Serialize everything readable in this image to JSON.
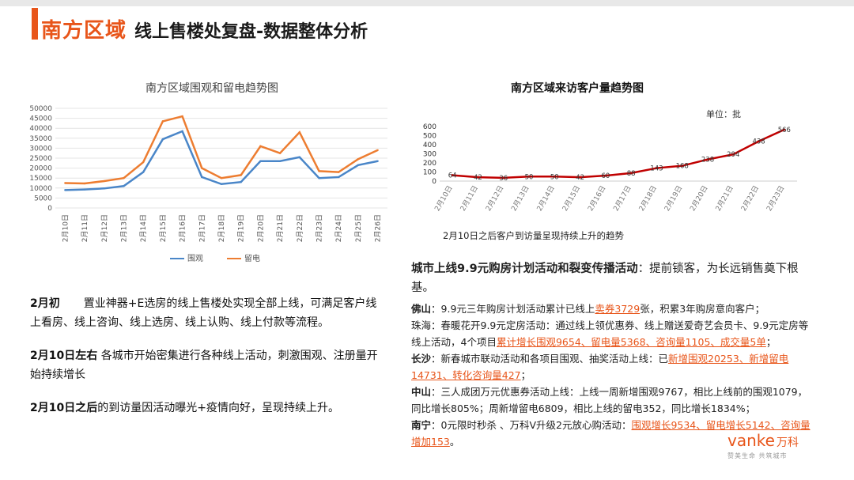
{
  "header": {
    "title_main": "南方区域",
    "title_sub": "线上售楼处复盘-数据整体分析"
  },
  "left_chart": {
    "title": "南方区域围观和留电趋势图",
    "legend": [
      "围观",
      "留电"
    ]
  },
  "right_chart": {
    "title": "南方区域来访客户量趋势图",
    "unit": "单位：批",
    "note": "2月10日之后客户到访量呈现持续上升的趋势"
  },
  "chart_data": [
    {
      "type": "line",
      "title": "南方区域围观和留电趋势图",
      "categories": [
        "2月10日",
        "2月11日",
        "2月12日",
        "2月13日",
        "2月14日",
        "2月15日",
        "2月16日",
        "2月17日",
        "2月18日",
        "2月19日",
        "2月20日",
        "2月21日",
        "2月22日",
        "2月23日",
        "2月24日",
        "2月25日",
        "2月26日"
      ],
      "series": [
        {
          "name": "围观",
          "color": "#4a86c8",
          "values": [
            9000,
            9300,
            9800,
            11000,
            18000,
            34500,
            38500,
            15500,
            12000,
            13000,
            23500,
            23500,
            25500,
            15000,
            15500,
            21500,
            23500
          ]
        },
        {
          "name": "留电",
          "color": "#ed7d31",
          "values": [
            12500,
            12300,
            13500,
            15000,
            23000,
            43500,
            46000,
            20000,
            15000,
            16500,
            31000,
            27500,
            38000,
            18500,
            18000,
            24500,
            29000
          ]
        }
      ],
      "ylim": [
        0,
        50000
      ],
      "yticks": [
        0,
        5000,
        10000,
        15000,
        20000,
        25000,
        30000,
        35000,
        40000,
        45000,
        50000
      ],
      "legend_position": "bottom"
    },
    {
      "type": "line",
      "title": "南方区域来访客户量趋势图",
      "categories": [
        "2月10日",
        "2月11日",
        "2月12日",
        "2月13日",
        "2月14日",
        "2月15日",
        "2月16日",
        "2月17日",
        "2月18日",
        "2月19日",
        "2月20日",
        "2月21日",
        "2月22日",
        "2月23日"
      ],
      "series": [
        {
          "color": "#c00000",
          "values": [
            64,
            42,
            36,
            50,
            50,
            42,
            60,
            88,
            143,
            168,
            238,
            294,
            438,
            566
          ]
        }
      ],
      "ylim": [
        0,
        600
      ],
      "yticks": [
        0,
        100,
        200,
        300,
        400,
        500,
        600
      ]
    }
  ],
  "left_notes": [
    {
      "label": "2月初",
      "text": "置业神器+E选房的线上售楼处实现全部上线，可满足客户线上看房、线上咨询、线上选房、线上认购、线上付款等流程。"
    },
    {
      "label": "2月10日左右",
      "text": "各城市开始密集进行各种线上活动，刺激围观、注册量开始持续增长"
    },
    {
      "label": "2月10日之后",
      "text": "的到访量因活动曝光+疫情向好，呈现持续上升。"
    }
  ],
  "right_notes": {
    "lead_bold": "城市上线9.9元购房计划活动和裂变传播活动",
    "lead_rest": "：提前锁客，为长远销售奠下根基。",
    "items": [
      {
        "city": "佛山",
        "text1": "：9.9元三年购房计划活动累计已线上",
        "hl1": "卖券3729",
        "text2": "张，积累3年购房意向客户；"
      },
      {
        "city": "",
        "text1": "珠海：春暖花开9.9元定房活动：通过线上领优惠券、线上赠送爱奇艺会员卡、9.9元定房等线上活动，4个项目",
        "hl1": "累计增长围观9654、留电量5368、咨询量1105、成交量5单",
        "text2": "；"
      },
      {
        "city": "长沙",
        "text1": "：新春城市联动活动和各项目围观、抽奖活动上线：已",
        "hl1": "新增围观20253、新增留电14731、转化咨询量427",
        "text2": "；"
      },
      {
        "city": "中山",
        "text1": "：三人成团万元优惠券活动上线：上线一周新增围观9767，相比上线前的围观1079，同比增长805%；周新增留电6809，相比上线的留电352，同比增长1834%；",
        "hl1": "",
        "text2": ""
      },
      {
        "city": "南宁",
        "text1": "：0元限时秒杀 、万科V升级2元放心购活动：",
        "hl1": "围观增长9534、留电增长5142、咨询量增加153",
        "text2": "。"
      }
    ]
  },
  "logo": {
    "main": "vanke",
    "cn": "万科",
    "tagline": "赞美生命 共筑城市"
  },
  "colors": {
    "accent": "#e8551a",
    "series_blue": "#4a86c8",
    "series_orange": "#ed7d31",
    "series_red": "#c00000"
  }
}
